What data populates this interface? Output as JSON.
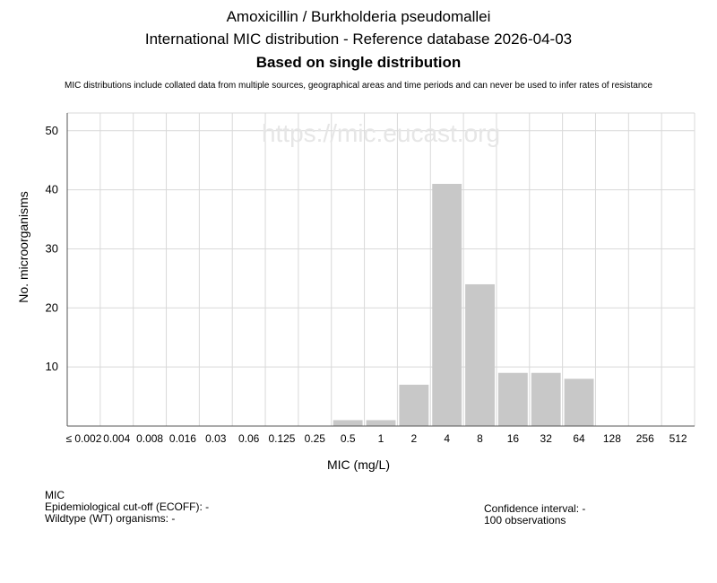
{
  "title_lines": [
    "Amoxicillin / Burkholderia pseudomallei",
    "International MIC distribution - Reference database 2026-04-03",
    "Based on single distribution"
  ],
  "note": "MIC distributions include collated data from multiple sources, geographical areas and time periods and can never be used to infer rates of resistance",
  "watermark": "https://mic.eucast.org",
  "footer": {
    "mic_label": "MIC",
    "ecoff": "Epidemiological cut-off (ECOFF): -",
    "wildtype": "Wildtype (WT) organisms:  -",
    "confidence": "Confidence interval: -",
    "observations": "100 observations"
  },
  "colors": {
    "bar": "#c8c8c8",
    "grid": "#d9d9d9",
    "watermark": "#e6e6e6"
  },
  "chart_data": {
    "type": "bar",
    "categories": [
      "≤ 0.002",
      "0.004",
      "0.008",
      "0.016",
      "0.03",
      "0.06",
      "0.125",
      "0.25",
      "0.5",
      "1",
      "2",
      "4",
      "8",
      "16",
      "32",
      "64",
      "128",
      "256",
      "512"
    ],
    "values": [
      0,
      0,
      0,
      0,
      0,
      0,
      0,
      0,
      1,
      1,
      7,
      41,
      24,
      9,
      9,
      8,
      0,
      0,
      0
    ],
    "xlabel": "MIC (mg/L)",
    "ylabel": "No. microorganisms",
    "ylim": [
      0,
      53
    ],
    "yticks": [
      10,
      20,
      30,
      40,
      50
    ],
    "grid": true
  }
}
